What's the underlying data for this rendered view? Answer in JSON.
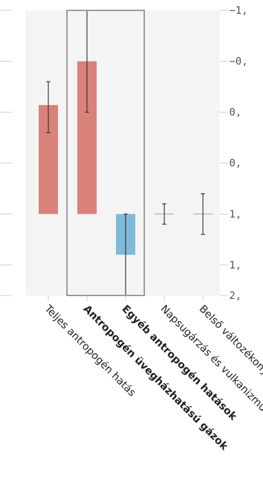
{
  "chart_data": {
    "type": "bar",
    "categories": [
      "Teljes antropogén hatás",
      "Antropogén üvegházhatású gázok",
      "Egyéb antropogén hatások",
      "Napsugárzás és vulkanizmus",
      "Belső változékonyság"
    ],
    "bold_categories": [
      false,
      true,
      true,
      false,
      false
    ],
    "values": [
      1.07,
      1.5,
      -0.4,
      0.0,
      0.0
    ],
    "error_low": [
      0.8,
      1.0,
      -0.8,
      -0.1,
      -0.2
    ],
    "error_high": [
      1.3,
      2.0,
      0.0,
      0.1,
      0.2
    ],
    "bar_colors": [
      "#d9827a",
      "#d9827a",
      "#7fbad8",
      "#999999",
      "#999999"
    ],
    "highlight_group": [
      1,
      2
    ],
    "ylim": [
      -0.8,
      2.0
    ],
    "yticks": [
      -0.5,
      0.0,
      0.5,
      1.0,
      1.5,
      2.0
    ],
    "ytick_labels": [
      "−1,",
      "−0,",
      "0,",
      "0,",
      "1,",
      "1,",
      "2,"
    ],
    "ytick_values": [
      -0.8,
      -0.5,
      0.0,
      0.5,
      1.0,
      1.5,
      2.0
    ],
    "grid": false,
    "title": "",
    "xlabel": "",
    "ylabel": ""
  }
}
